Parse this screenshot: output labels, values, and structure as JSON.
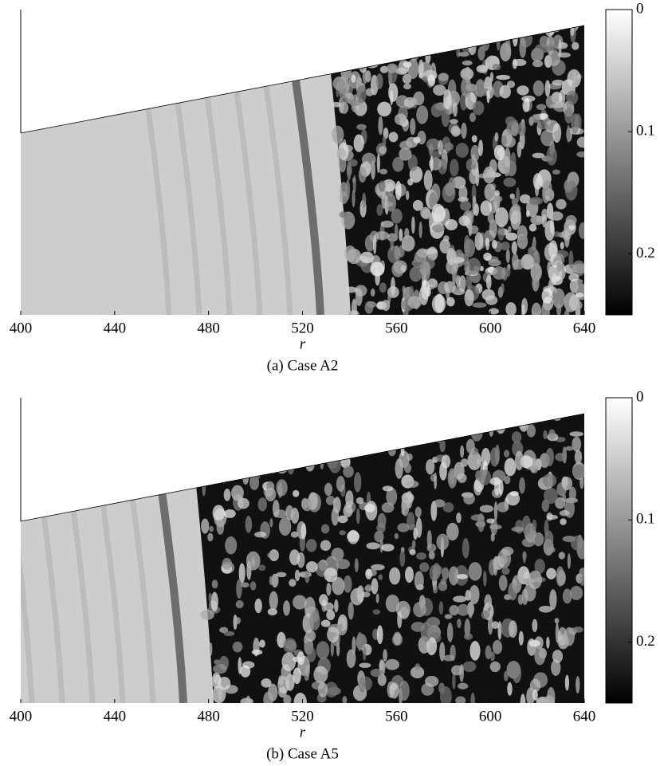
{
  "chart_data": [
    {
      "type": "heatmap",
      "xlabel": "r",
      "caption": "(a) Case A2",
      "xlim": [
        400,
        640
      ],
      "xticks": [
        400,
        440,
        480,
        520,
        560,
        600,
        640
      ],
      "clim": [
        0,
        0.25
      ],
      "cticks": [
        0,
        0.1,
        0.2
      ]
    },
    {
      "type": "heatmap",
      "xlabel": "r",
      "caption": "(b) Case A5",
      "xlim": [
        400,
        640
      ],
      "xticks": [
        400,
        440,
        480,
        520,
        560,
        600,
        640
      ],
      "clim": [
        0,
        0.25
      ],
      "cticks": [
        0,
        0.1,
        0.2
      ]
    }
  ]
}
